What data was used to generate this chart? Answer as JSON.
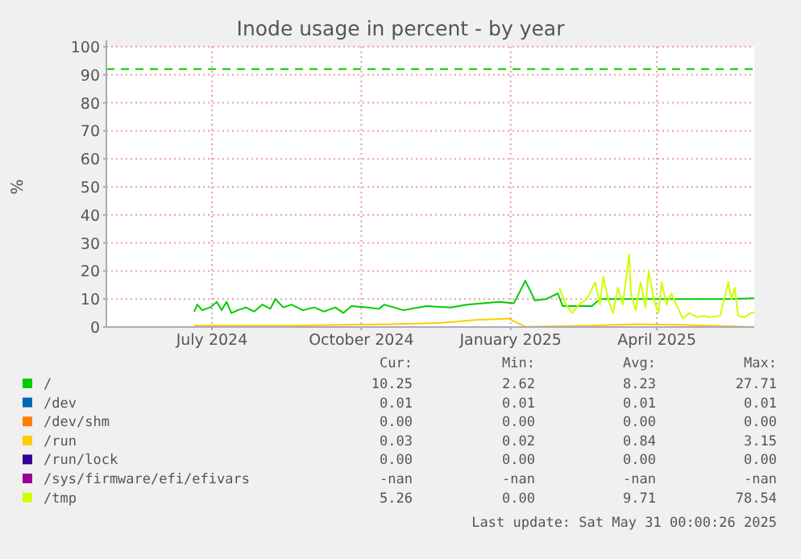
{
  "chart_data": {
    "type": "line",
    "title": "Inode usage in percent - by year",
    "ylabel": "%",
    "xlim": [
      "2024-04-27",
      "2025-05-31"
    ],
    "xticks": [
      {
        "value": "2024-07-01",
        "label": "July 2024"
      },
      {
        "value": "2024-10-01",
        "label": "October 2024"
      },
      {
        "value": "2025-01-01",
        "label": "January 2025"
      },
      {
        "value": "2025-04-01",
        "label": "April 2025"
      }
    ],
    "ylim": [
      0,
      100
    ],
    "yticks": [
      0,
      10,
      20,
      30,
      40,
      50,
      60,
      70,
      80,
      90,
      100
    ],
    "grid": true,
    "legend": "bottom",
    "marker": "none",
    "line_style": "solid",
    "ref_lines": [
      {
        "axis": "y",
        "value": 92,
        "color": "#00cc00",
        "line_style": "dashed"
      }
    ],
    "series": [
      {
        "name": "/",
        "color": "#00cc00",
        "x": [
          "2024-06-20",
          "2024-06-22",
          "2024-06-25",
          "2024-06-30",
          "2024-07-04",
          "2024-07-07",
          "2024-07-10",
          "2024-07-13",
          "2024-07-17",
          "2024-07-22",
          "2024-07-27",
          "2024-08-01",
          "2024-08-06",
          "2024-08-09",
          "2024-08-14",
          "2024-08-19",
          "2024-08-26",
          "2024-09-02",
          "2024-09-08",
          "2024-09-15",
          "2024-09-20",
          "2024-09-25",
          "2024-10-05",
          "2024-10-12",
          "2024-10-15",
          "2024-10-27",
          "2024-11-10",
          "2024-11-25",
          "2024-12-05",
          "2024-12-15",
          "2024-12-25",
          "2025-01-03",
          "2025-01-10",
          "2025-01-16",
          "2025-01-23",
          "2025-01-30",
          "2025-02-02",
          "2025-02-20",
          "2025-02-25",
          "2025-03-15",
          "2025-04-15",
          "2025-05-15",
          "2025-05-31"
        ],
        "values": [
          5.5,
          8,
          6,
          7,
          9,
          6,
          9,
          5,
          6,
          7,
          5.5,
          8,
          6.5,
          10,
          7,
          8,
          6,
          7,
          5.5,
          7,
          5,
          7.5,
          7,
          6.5,
          8,
          6,
          7.5,
          7,
          8,
          8.5,
          9,
          8.5,
          16.5,
          9.5,
          10,
          12,
          7.5,
          7.5,
          10,
          10,
          10,
          10,
          10.3
        ]
      },
      {
        "name": "/dev",
        "color": "#0066b3"
      },
      {
        "name": "/dev/shm",
        "color": "#ff8000"
      },
      {
        "name": "/run",
        "color": "#ffcc00",
        "x": [
          "2024-06-20",
          "2024-07-20",
          "2024-08-20",
          "2024-09-20",
          "2024-10-20",
          "2024-11-20",
          "2024-12-10",
          "2024-12-31",
          "2025-01-10",
          "2025-02-20",
          "2025-03-20",
          "2025-04-20",
          "2025-05-31"
        ],
        "values": [
          0.5,
          0.5,
          0.5,
          0.8,
          1,
          1.5,
          2.5,
          3,
          0.1,
          0.5,
          1,
          0.7,
          0
        ]
      },
      {
        "name": "/run/lock",
        "color": "#330099"
      },
      {
        "name": "/sys/firmware/efi/efivars",
        "color": "#990099"
      },
      {
        "name": "/tmp",
        "color": "#ccff00",
        "x": [
          "2025-01-31",
          "2025-02-04",
          "2025-02-08",
          "2025-02-12",
          "2025-02-17",
          "2025-02-22",
          "2025-02-25",
          "2025-02-27",
          "2025-03-02",
          "2025-03-05",
          "2025-03-08",
          "2025-03-11",
          "2025-03-15",
          "2025-03-16",
          "2025-03-19",
          "2025-03-22",
          "2025-03-25",
          "2025-03-27",
          "2025-03-30",
          "2025-04-02",
          "2025-04-04",
          "2025-04-07",
          "2025-04-10",
          "2025-04-13",
          "2025-04-17",
          "2025-04-21",
          "2025-04-26",
          "2025-04-30",
          "2025-05-03",
          "2025-05-10",
          "2025-05-15",
          "2025-05-17",
          "2025-05-19",
          "2025-05-21",
          "2025-05-25",
          "2025-05-29",
          "2025-05-31"
        ],
        "values": [
          14,
          8,
          5,
          8,
          10,
          16,
          8,
          18,
          10,
          5,
          14,
          8,
          26,
          12,
          6,
          16,
          7,
          20,
          10,
          5,
          16,
          8,
          12,
          8,
          3,
          5,
          3.5,
          4,
          3.5,
          4,
          16,
          10,
          14,
          4,
          3.5,
          5,
          5.3
        ]
      }
    ],
    "annotations": [
      "Cur:",
      "Min:",
      "Avg:",
      "Max:",
      "10.25",
      "2.62",
      "8.23",
      "27.71",
      "0.01",
      "0.01",
      "0.01",
      "0.01",
      "0.00",
      "0.00",
      "0.00",
      "0.00",
      "0.03",
      "0.02",
      "0.84",
      "3.15",
      "0.00",
      "0.00",
      "0.00",
      "0.00",
      "-nan",
      "-nan",
      "-nan",
      "-nan",
      "5.26",
      "0.00",
      "9.71",
      "78.54",
      "Last update: Sat May 31 00:00:26 2025"
    ]
  }
}
